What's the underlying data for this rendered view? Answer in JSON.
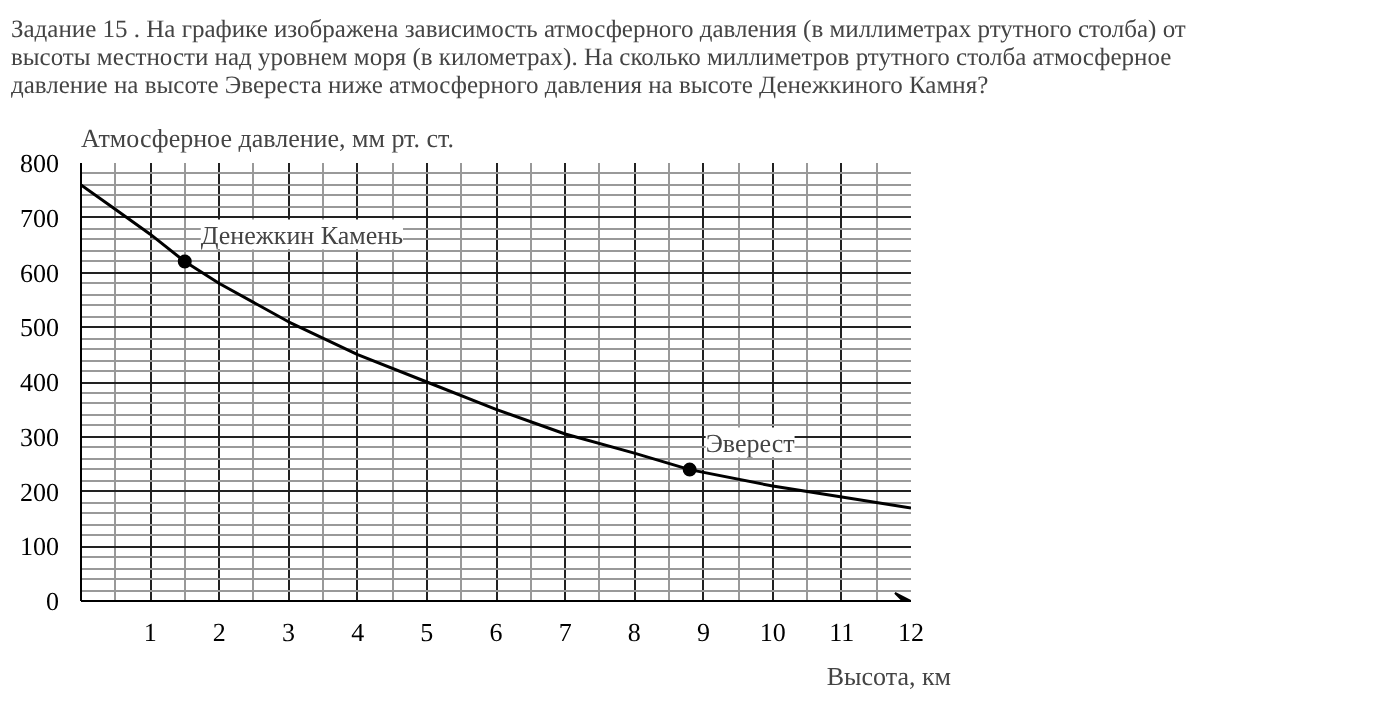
{
  "chart_data": {
    "type": "line",
    "title": "Задание 15 . На графике изображена зависимость атмосферного давления (в миллиметрах ртутного столба) от высоты местности над уровнем моря (в километрах). На сколько миллиметров ртутного столба атмосферное давление на высоте Эвереста ниже атмосферного давления на высоте Денежкиного Камня?",
    "xlabel": "Высота, км",
    "ylabel": "Атмосферное давление, мм  рт. ст.",
    "series": [
      {
        "color": "#000000",
        "x": [
          0,
          0.5,
          1,
          1.5,
          2,
          3,
          4,
          5,
          6,
          7,
          8,
          8.8,
          10,
          11,
          12
        ],
        "values": [
          760,
          715,
          670,
          620,
          580,
          510,
          450,
          400,
          350,
          305,
          270,
          240,
          210,
          190,
          170
        ]
      },
      {
        "type": "scatter",
        "color": "#000000",
        "marker": "circle",
        "x": [
          1.5,
          8.8
        ],
        "values": [
          620,
          240
        ]
      }
    ],
    "annotations": [
      {
        "text": "Денежкин Камень",
        "x": 1.5,
        "y": 620
      },
      {
        "text": "Эверест",
        "x": 8.8,
        "y": 240
      }
    ],
    "xlim": [
      0,
      12
    ],
    "ylim": [
      0,
      800
    ],
    "xticks": [
      1,
      2,
      3,
      4,
      5,
      6,
      7,
      8,
      9,
      10,
      11,
      12
    ],
    "yticks": [
      0,
      100,
      200,
      300,
      400,
      500,
      600,
      700,
      800
    ],
    "grid": true
  }
}
